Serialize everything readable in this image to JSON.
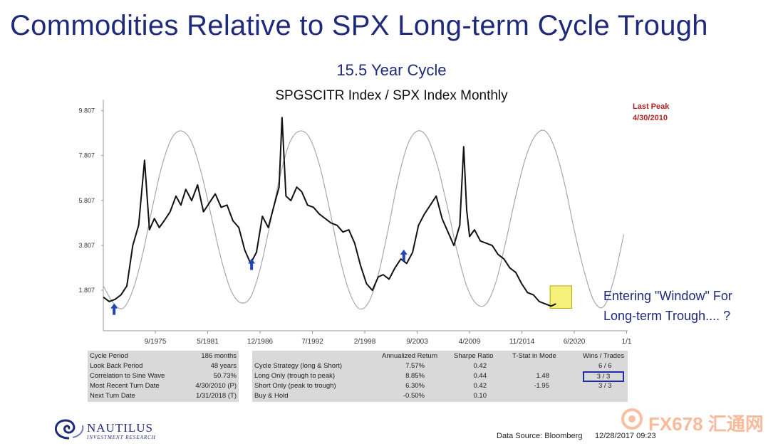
{
  "header": {
    "title": "Commodities Relative to SPX Long-term Cycle Trough",
    "subtitle": "15.5 Year Cycle",
    "chart_title": "SPGSCITR Index / SPX Index Monthly"
  },
  "annotations": {
    "last_peak_label": "Last Peak",
    "last_peak_date": "4/30/2010",
    "callout_line1": "Entering \"Window\" For",
    "callout_line2": "Long-term Trough.... ?"
  },
  "chart_data": {
    "type": "line",
    "title": "SPGSCITR Index / SPX Index Monthly",
    "xlabel": "",
    "ylabel": "",
    "x_ticks": [
      "9/1975",
      "5/1981",
      "12/1986",
      "7/1992",
      "2/1998",
      "9/2003",
      "4/2009",
      "11/2014",
      "6/2020",
      "1/1"
    ],
    "y_ticks": [
      "9.807",
      "7.807",
      "5.807",
      "3.807",
      "1.807"
    ],
    "ylim": [
      0,
      10.3
    ],
    "xlim": [
      1971.8,
      2025.2
    ],
    "grid": false,
    "series": [
      {
        "color": "#111111",
        "x": [
          1971.8,
          1972.4,
          1973.0,
          1973.6,
          1974.2,
          1974.8,
          1975.4,
          1976.0,
          1976.5,
          1977.0,
          1977.5,
          1978.0,
          1978.6,
          1979.2,
          1979.7,
          1980.2,
          1980.8,
          1981.4,
          1982.0,
          1982.6,
          1983.2,
          1983.8,
          1984.4,
          1985.0,
          1985.6,
          1986.2,
          1986.8,
          1987.4,
          1988.0,
          1988.6,
          1989.2,
          1989.7,
          1990.0,
          1990.4,
          1990.9,
          1991.5,
          1992.0,
          1992.6,
          1993.2,
          1993.8,
          1994.4,
          1995.0,
          1995.6,
          1996.2,
          1996.8,
          1997.4,
          1998.0,
          1998.6,
          1999.2,
          1999.8,
          2000.3,
          2000.9,
          2001.5,
          2002.1,
          2002.7,
          2003.3,
          2003.9,
          2004.5,
          2005.1,
          2005.7,
          2006.3,
          2006.9,
          2007.5,
          2008.1,
          2008.5,
          2008.8,
          2009.1,
          2009.6,
          2010.2,
          2010.8,
          2011.4,
          2012.0,
          2012.6,
          2013.2,
          2013.8,
          2014.4,
          2015.0,
          2015.6,
          2016.2,
          2016.8,
          2017.4,
          2017.9
        ],
        "values": [
          1.5,
          1.3,
          1.4,
          1.6,
          2.0,
          3.8,
          4.7,
          7.6,
          4.5,
          5.0,
          4.6,
          4.9,
          5.3,
          6.0,
          5.6,
          6.3,
          5.8,
          6.5,
          5.3,
          5.7,
          6.1,
          5.5,
          5.6,
          4.9,
          4.6,
          3.6,
          3.0,
          3.5,
          5.1,
          4.6,
          5.6,
          6.4,
          9.5,
          6.0,
          5.8,
          6.4,
          6.2,
          5.6,
          5.5,
          5.2,
          5.0,
          4.8,
          4.7,
          4.4,
          4.5,
          3.9,
          2.9,
          2.1,
          1.8,
          2.4,
          2.5,
          2.3,
          2.8,
          3.2,
          3.0,
          3.5,
          4.7,
          5.2,
          5.6,
          6.0,
          5.0,
          4.4,
          3.8,
          4.7,
          8.2,
          5.4,
          4.2,
          4.5,
          4.0,
          3.9,
          3.8,
          3.4,
          3.2,
          2.8,
          2.6,
          2.1,
          1.7,
          1.6,
          1.3,
          1.2,
          1.1,
          1.2
        ]
      },
      {
        "color": "#a8a8a8",
        "x": [
          1971.8,
          1972.8,
          1973.8,
          1974.8,
          1975.8,
          1976.8,
          1977.8,
          1978.8,
          1979.8,
          1980.8,
          1981.8,
          1982.8,
          1983.8,
          1984.8,
          1985.8,
          1986.8,
          1987.8,
          1988.8,
          1989.8,
          1990.8,
          1991.8,
          1992.8,
          1993.8,
          1994.8,
          1995.8,
          1996.8,
          1997.8,
          1998.8,
          1999.8,
          2000.8,
          2001.8,
          2002.8,
          2003.8,
          2004.8,
          2005.8,
          2006.8,
          2007.8,
          2008.8,
          2009.8,
          2010.8,
          2011.8,
          2012.8,
          2013.8,
          2014.8,
          2015.8,
          2016.8,
          2017.8,
          2018.8,
          2019.8,
          2020.8,
          2021.8,
          2022.8,
          2023.8,
          2024.8
        ],
        "values": [
          2.0,
          1.25,
          1.0,
          1.8,
          3.4,
          5.5,
          7.4,
          8.6,
          8.9,
          8.4,
          7.0,
          5.1,
          3.2,
          1.8,
          1.25,
          1.5,
          2.8,
          4.8,
          6.9,
          8.4,
          8.9,
          8.6,
          7.4,
          5.5,
          3.4,
          1.8,
          1.0,
          1.25,
          2.5,
          4.5,
          6.7,
          8.3,
          8.9,
          8.6,
          7.4,
          5.6,
          3.6,
          2.0,
          1.2,
          1.2,
          2.2,
          4.0,
          6.0,
          7.7,
          8.7,
          8.9,
          8.1,
          6.5,
          4.4,
          2.6,
          1.3,
          1.1,
          2.3,
          4.3
        ]
      }
    ],
    "markers": [
      {
        "label": "trough-marker-1974",
        "x": 1972.9,
        "y": 0.9
      },
      {
        "label": "trough-marker-1986",
        "x": 1986.9,
        "y": 2.9
      },
      {
        "label": "trough-marker-2002",
        "x": 2002.4,
        "y": 3.3
      }
    ],
    "window_box": {
      "x0": 2017.3,
      "x1": 2019.5,
      "y0": 1.0,
      "y1": 2.0
    },
    "accent_colors": {
      "title": "#1f2a7a",
      "arrow": "#2244bb",
      "window": "#f5f07a",
      "last_peak": "#b22222"
    }
  },
  "stats_left": {
    "rows": [
      {
        "label": "Cycle Period",
        "value": "186 months"
      },
      {
        "label": "Look Back Period",
        "value": "48 years"
      },
      {
        "label": "Correlation to Sine Wave",
        "value": "50.73%"
      },
      {
        "label": "Most Recent Turn Date",
        "value": "4/30/2010 (P)"
      },
      {
        "label": "Next Turn Date",
        "value": "1/31/2018 (T)"
      }
    ]
  },
  "stats_right": {
    "headers": [
      "Annualized Return",
      "Sharpe Ratio",
      "T-Stat in Mode",
      "Wins / Trades"
    ],
    "rows": [
      {
        "label": "Cycle Strategy (long & Short)",
        "ret": "7.57%",
        "sharpe": "0.42",
        "tstat": "",
        "wins": "6 / 6"
      },
      {
        "label": "Long Only (trough to peak)",
        "ret": "8.85%",
        "sharpe": "0.44",
        "tstat": "1.48",
        "wins": "3 / 3"
      },
      {
        "label": "Short Only (peak to trough)",
        "ret": "6.30%",
        "sharpe": "0.42",
        "tstat": "-1.95",
        "wins": "3 / 3"
      },
      {
        "label": "Buy & Hold",
        "ret": "-0.50%",
        "sharpe": "0.10",
        "tstat": "",
        "wins": ""
      }
    ]
  },
  "footer": {
    "logo_name": "NAUTILUS",
    "logo_sub": "INVESTMENT RESEARCH",
    "data_source": "Data Source: Bloomberg",
    "timestamp": "12/28/2017 09:23",
    "watermark": "FX678 汇通网"
  }
}
